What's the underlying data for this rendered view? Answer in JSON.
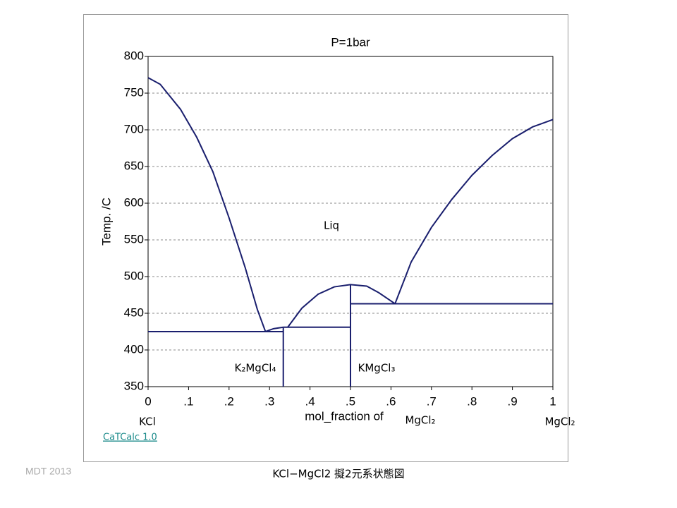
{
  "chart_data": {
    "type": "line",
    "title": "P=1bar",
    "x_label": "mol_fraction of",
    "y_label": "Temp.  /C",
    "color": "#1a1f6e",
    "series": [
      {
        "x": [
          0,
          0.03,
          0.08,
          0.12,
          0.16,
          0.2,
          0.24,
          0.27,
          0.29
        ],
        "values": [
          771,
          762,
          728,
          690,
          643,
          580,
          512,
          455,
          425
        ]
      },
      {
        "x": [
          0.29,
          0.31,
          0.334
        ],
        "values": [
          425,
          429,
          431
        ]
      },
      {
        "x": [
          0.345,
          0.38,
          0.42,
          0.46,
          0.5,
          0.54,
          0.57,
          0.61
        ],
        "values": [
          431,
          457,
          476,
          486,
          489,
          487,
          478,
          463
        ]
      },
      {
        "x": [
          0.61,
          0.65,
          0.7,
          0.75,
          0.8,
          0.85,
          0.9,
          0.95,
          1
        ],
        "values": [
          463,
          520,
          567,
          605,
          638,
          665,
          688,
          704,
          714
        ]
      },
      {
        "x": [
          0,
          0.334
        ],
        "values": [
          425,
          425
        ]
      },
      {
        "x": [
          0.334,
          0.5
        ],
        "values": [
          431,
          431
        ]
      },
      {
        "x": [
          0.5,
          1
        ],
        "values": [
          463,
          463
        ]
      },
      {
        "x": [
          0.334,
          0.334
        ],
        "values": [
          350,
          431
        ]
      },
      {
        "x": [
          0.5,
          0.5
        ],
        "values": [
          350,
          489
        ]
      }
    ],
    "xlim": [
      0,
      1
    ],
    "xticks": [
      0,
      {
        "value": 0.1,
        "label": ".1"
      },
      {
        "value": 0.2,
        "label": ".2"
      },
      {
        "value": 0.3,
        "label": ".3"
      },
      {
        "value": 0.4,
        "label": ".4"
      },
      {
        "value": 0.5,
        "label": ".5"
      },
      {
        "value": 0.6,
        "label": ".6"
      },
      {
        "value": 0.7,
        "label": ".7"
      },
      {
        "value": 0.8,
        "label": ".8"
      },
      {
        "value": 0.9,
        "label": ".9"
      },
      1
    ],
    "ylim": [
      350,
      800
    ],
    "yticks": [
      350,
      400,
      450,
      500,
      550,
      600,
      650,
      700,
      750,
      800
    ],
    "grid": true,
    "annotations": [
      "Liq",
      "K₂MgCl₄",
      "KMgCl₃",
      "KCl",
      "MgCl₂",
      "MgCl₂"
    ],
    "credit": "CaTCalc 1.0"
  },
  "footer": {
    "left": "MDT   2013",
    "caption": "KCl−MgCl2  擬2元系状態図"
  }
}
